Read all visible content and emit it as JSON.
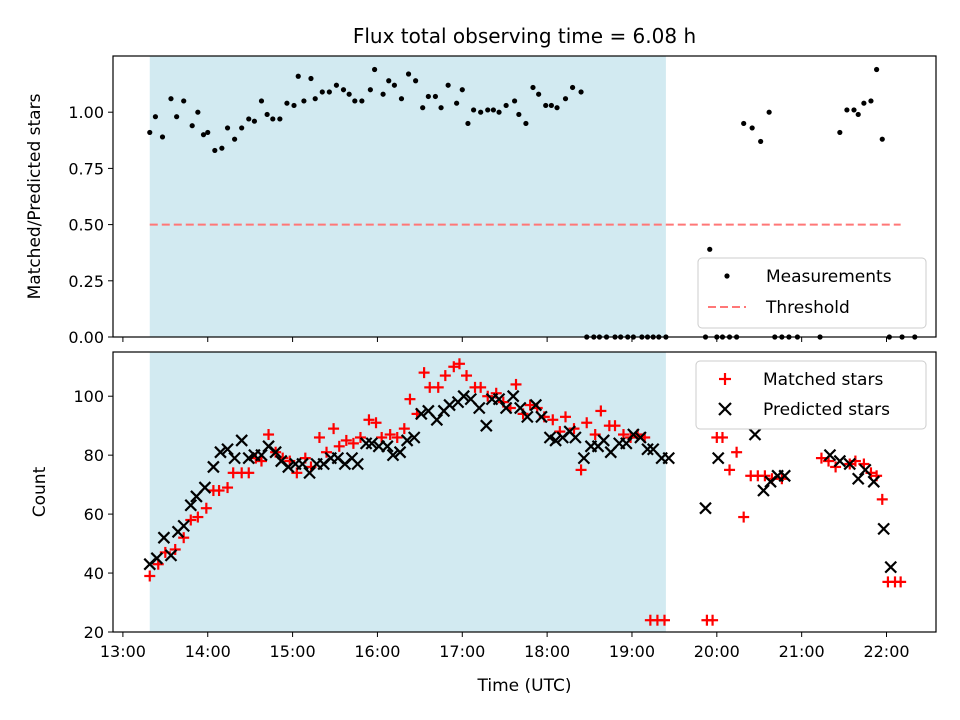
{
  "chart_data": [
    {
      "type": "scatter",
      "title": "Flux total observing time = 6.08 h",
      "xlabel": "",
      "ylabel": "Matched/Predicted stars",
      "xlim": [
        "12:53",
        "22:35"
      ],
      "ylim": [
        0,
        1.25
      ],
      "yticks": [
        0.0,
        0.25,
        0.5,
        0.75,
        1.0
      ],
      "ytick_labels": [
        "0.00",
        "0.25",
        "0.50",
        "0.75",
        "1.00"
      ],
      "shaded_span": [
        "13:19",
        "19:24"
      ],
      "legend_position": "lower-right",
      "grid": false,
      "series": [
        {
          "name": "Measurements",
          "marker": "dot",
          "color": "#000000",
          "x": [
            "13:19",
            "13:23",
            "13:28",
            "13:34",
            "13:38",
            "13:43",
            "13:49",
            "13:53",
            "13:57",
            "14:00",
            "14:05",
            "14:10",
            "14:14",
            "14:19",
            "14:24",
            "14:29",
            "14:33",
            "14:38",
            "14:42",
            "14:46",
            "14:51",
            "14:56",
            "15:01",
            "15:04",
            "15:08",
            "15:13",
            "15:16",
            "15:21",
            "15:26",
            "15:31",
            "15:36",
            "15:40",
            "15:44",
            "15:49",
            "15:55",
            "15:58",
            "16:04",
            "16:08",
            "16:12",
            "16:17",
            "16:22",
            "16:27",
            "16:32",
            "16:36",
            "16:41",
            "16:45",
            "16:50",
            "16:56",
            "17:00",
            "17:04",
            "17:08",
            "17:13",
            "17:18",
            "17:22",
            "17:26",
            "17:31",
            "17:37",
            "17:40",
            "17:45",
            "17:50",
            "17:54",
            "17:59",
            "18:03",
            "18:07",
            "18:13",
            "18:18",
            "18:24",
            "18:28",
            "18:33",
            "18:37",
            "18:42",
            "18:48",
            "18:52",
            "18:57",
            "19:01",
            "19:07",
            "19:11",
            "19:15",
            "19:19",
            "19:24",
            "19:52",
            "19:55",
            "20:00",
            "20:04",
            "20:09",
            "20:14",
            "20:19",
            "20:25",
            "20:31",
            "20:37",
            "20:41",
            "20:46",
            "20:51",
            "20:57",
            "21:13",
            "21:27",
            "21:32",
            "21:37",
            "21:40",
            "21:44",
            "21:49",
            "21:53",
            "21:57",
            "22:02",
            "22:11",
            "22:20"
          ],
          "values": [
            0.91,
            0.98,
            0.89,
            1.06,
            0.98,
            1.05,
            0.94,
            1.0,
            0.9,
            0.91,
            0.83,
            0.84,
            0.93,
            0.88,
            0.93,
            0.97,
            0.96,
            1.05,
            0.99,
            0.97,
            0.97,
            1.04,
            1.03,
            1.16,
            1.05,
            1.15,
            1.06,
            1.09,
            1.09,
            1.12,
            1.1,
            1.08,
            1.05,
            1.05,
            1.1,
            1.19,
            1.08,
            1.14,
            1.12,
            1.06,
            1.17,
            1.14,
            1.02,
            1.07,
            1.07,
            1.02,
            1.12,
            1.04,
            1.1,
            0.95,
            1.01,
            1.0,
            1.01,
            1.01,
            1.0,
            1.03,
            1.05,
            0.99,
            0.95,
            1.11,
            1.08,
            1.03,
            1.03,
            1.02,
            1.06,
            1.11,
            1.09,
            0.0,
            0.0,
            0.0,
            0.0,
            0.0,
            0.0,
            0.0,
            0.0,
            0.0,
            0.0,
            0.0,
            0.0,
            0.0,
            0.0,
            0.39,
            0.0,
            0.0,
            0.0,
            0.0,
            0.95,
            0.93,
            0.87,
            1.0,
            0.0,
            0.0,
            0.0,
            0.0,
            0.0,
            0.91,
            1.01,
            1.01,
            0.99,
            1.04,
            1.05,
            1.19,
            0.88,
            0.0,
            0.0,
            0.0
          ]
        },
        {
          "name": "Threshold",
          "style": "dashed",
          "color": "#ff7777",
          "x": [
            "13:19",
            "22:10"
          ],
          "values": [
            0.5,
            0.5
          ]
        }
      ]
    },
    {
      "type": "scatter",
      "title": "",
      "xlabel": "Time (UTC)",
      "ylabel": "Count",
      "xlim": [
        "12:53",
        "22:35"
      ],
      "ylim": [
        20,
        115
      ],
      "yticks": [
        20,
        40,
        60,
        80,
        100
      ],
      "xticks": [
        "13:00",
        "14:00",
        "15:00",
        "16:00",
        "17:00",
        "18:00",
        "19:00",
        "20:00",
        "21:00",
        "22:00"
      ],
      "shaded_span": [
        "13:19",
        "19:24"
      ],
      "legend_position": "upper-right",
      "grid": false,
      "series": [
        {
          "name": "Matched stars",
          "marker": "plus",
          "color": "#ff0000",
          "x": [
            "13:19",
            "13:25",
            "13:30",
            "13:37",
            "13:43",
            "13:48",
            "13:53",
            "13:59",
            "14:04",
            "14:08",
            "14:14",
            "14:18",
            "14:24",
            "14:29",
            "14:34",
            "14:38",
            "14:43",
            "14:48",
            "14:53",
            "14:58",
            "15:03",
            "15:09",
            "15:13",
            "15:19",
            "15:24",
            "15:29",
            "15:33",
            "15:38",
            "15:43",
            "15:48",
            "15:54",
            "15:59",
            "16:03",
            "16:09",
            "16:14",
            "16:19",
            "16:23",
            "16:28",
            "16:33",
            "16:37",
            "16:43",
            "16:48",
            "16:54",
            "16:58",
            "17:03",
            "17:09",
            "17:13",
            "17:18",
            "17:24",
            "17:29",
            "17:34",
            "17:38",
            "17:43",
            "17:48",
            "17:53",
            "17:58",
            "18:04",
            "18:09",
            "18:13",
            "18:19",
            "18:24",
            "18:28",
            "18:34",
            "18:38",
            "18:44",
            "18:48",
            "18:54",
            "18:59",
            "19:04",
            "19:09",
            "19:13",
            "19:18",
            "19:23",
            "19:53",
            "19:57",
            "20:00",
            "20:04",
            "20:09",
            "20:14",
            "20:19",
            "20:24",
            "20:29",
            "20:34",
            "20:39",
            "20:46",
            "21:14",
            "21:19",
            "21:24",
            "21:34",
            "21:38",
            "21:44",
            "21:49",
            "21:53",
            "21:57",
            "22:01",
            "22:06",
            "22:10"
          ],
          "values": [
            39,
            43,
            47,
            48,
            52,
            58,
            59,
            62,
            68,
            68,
            69,
            74,
            74,
            74,
            79,
            78,
            87,
            81,
            79,
            78,
            74,
            79,
            76,
            86,
            81,
            89,
            83,
            85,
            84,
            86,
            92,
            91,
            86,
            87,
            86,
            89,
            99,
            94,
            108,
            103,
            103,
            107,
            110,
            111,
            107,
            103,
            103,
            100,
            101,
            98,
            96,
            104,
            94,
            97,
            96,
            93,
            92,
            88,
            93,
            89,
            75,
            91,
            87,
            95,
            90,
            90,
            87,
            86,
            87,
            86,
            24,
            24,
            24,
            24,
            24,
            86,
            86,
            75,
            81,
            59,
            73,
            73,
            73,
            72,
            72,
            79,
            78,
            76,
            77,
            78,
            77,
            74,
            73,
            65,
            37,
            37,
            37
          ]
        },
        {
          "name": "Predicted stars",
          "marker": "x",
          "color": "#000000",
          "x": [
            "13:19",
            "13:24",
            "13:29",
            "13:34",
            "13:39",
            "13:43",
            "13:48",
            "13:52",
            "13:58",
            "14:04",
            "14:09",
            "14:14",
            "14:19",
            "14:24",
            "14:29",
            "14:33",
            "14:38",
            "14:43",
            "14:48",
            "14:52",
            "14:57",
            "15:02",
            "15:07",
            "15:12",
            "15:17",
            "15:22",
            "15:27",
            "15:32",
            "15:37",
            "15:42",
            "15:46",
            "15:52",
            "15:56",
            "16:01",
            "16:07",
            "16:11",
            "16:16",
            "16:21",
            "16:26",
            "16:31",
            "16:36",
            "16:42",
            "16:47",
            "16:51",
            "16:57",
            "17:01",
            "17:06",
            "17:12",
            "17:17",
            "17:21",
            "17:26",
            "17:31",
            "17:36",
            "17:41",
            "17:46",
            "17:52",
            "17:56",
            "18:02",
            "18:06",
            "18:11",
            "18:16",
            "18:20",
            "18:26",
            "18:31",
            "18:36",
            "18:40",
            "18:45",
            "18:51",
            "18:56",
            "19:01",
            "19:06",
            "19:11",
            "19:15",
            "19:21",
            "19:26",
            "19:52",
            "20:01",
            "20:27",
            "20:33",
            "20:38",
            "20:43",
            "20:48",
            "21:20",
            "21:27",
            "21:34",
            "21:40",
            "21:45",
            "21:51",
            "21:58",
            "22:03"
          ],
          "values": [
            43,
            45,
            52,
            46,
            54,
            56,
            63,
            66,
            69,
            76,
            81,
            82,
            79,
            85,
            79,
            80,
            80,
            83,
            81,
            78,
            76,
            77,
            77,
            74,
            77,
            77,
            79,
            79,
            77,
            79,
            77,
            84,
            84,
            83,
            83,
            80,
            81,
            85,
            86,
            94,
            95,
            92,
            95,
            97,
            98,
            100,
            99,
            96,
            90,
            99,
            99,
            96,
            100,
            96,
            93,
            97,
            93,
            86,
            85,
            86,
            88,
            86,
            79,
            83,
            83,
            85,
            81,
            84,
            84,
            87,
            86,
            82,
            82,
            79,
            79,
            62,
            79,
            87,
            68,
            71,
            73,
            73,
            80,
            78,
            77,
            72,
            75,
            71,
            55,
            42
          ]
        }
      ]
    }
  ]
}
